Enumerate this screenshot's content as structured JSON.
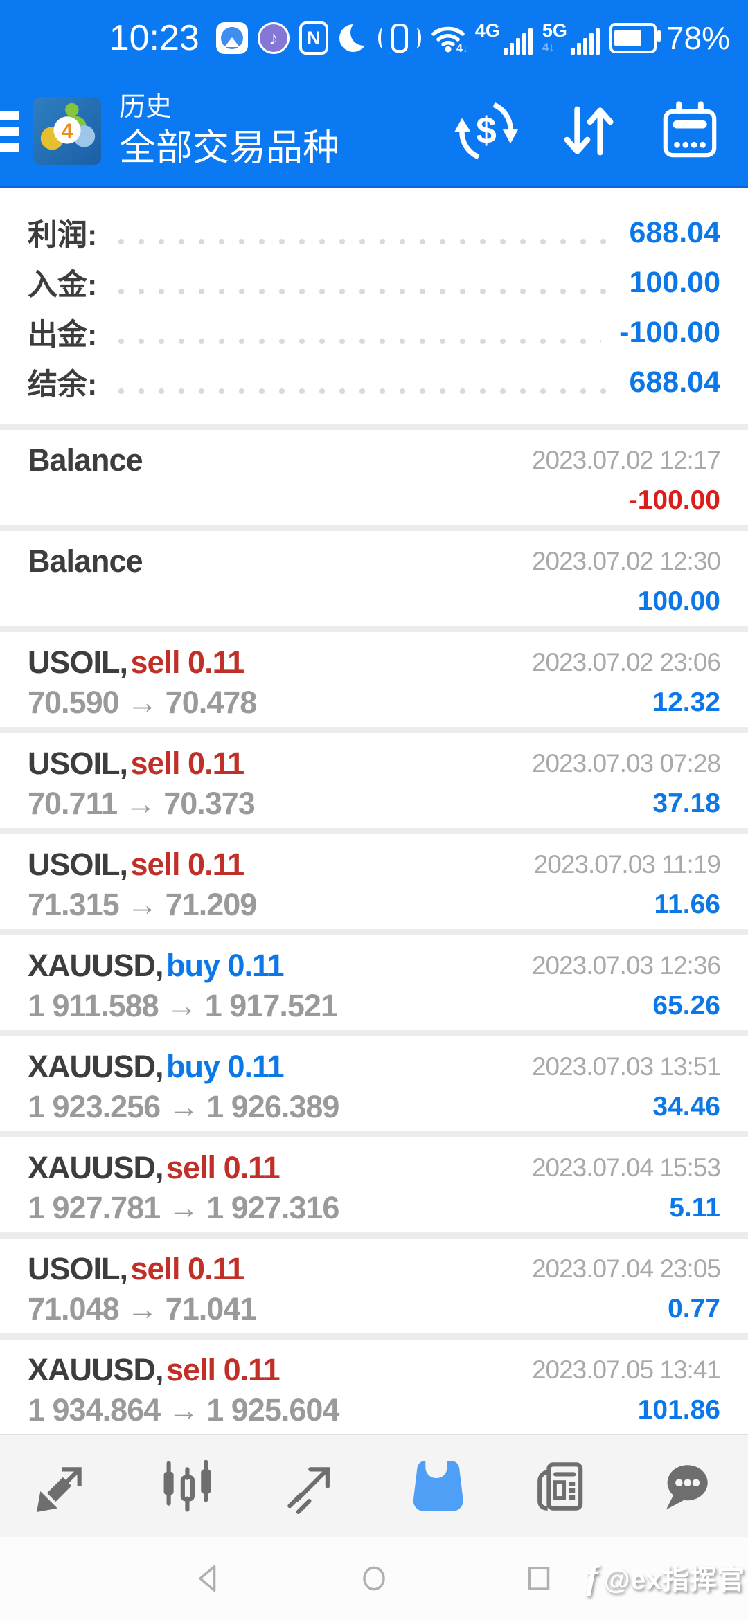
{
  "colors": {
    "header_blue": "#0b7af2",
    "accent_blue": "#0c78e8",
    "sell_red": "#c13028",
    "negative_red": "#d91f1c",
    "toolbar_active_blue": "#4f9ff7"
  },
  "status_bar": {
    "time": "10:23",
    "music_glyph": "♪",
    "nfc_letter": "N",
    "network_primary": "4G",
    "network_secondary": "5G",
    "wifi_sub": "4↓",
    "network_secondary_sub": "4↓",
    "battery_percent": "78%"
  },
  "header": {
    "title_small": "历史",
    "title_large": "全部交易品种",
    "logo_badge": "4"
  },
  "summary": {
    "rows": [
      {
        "label": "利润:",
        "value": "688.04"
      },
      {
        "label": "入金:",
        "value": "100.00"
      },
      {
        "label": "出金:",
        "value": "-100.00"
      },
      {
        "label": "结余:",
        "value": "688.04"
      }
    ]
  },
  "strings": {
    "price_arrow": "→"
  },
  "history": {
    "items": [
      {
        "type": "balance",
        "title": "Balance",
        "datetime": "2023.07.02 12:17",
        "amount": "-100.00",
        "amount_class": "negative"
      },
      {
        "type": "balance",
        "title": "Balance",
        "datetime": "2023.07.02 12:30",
        "amount": "100.00",
        "amount_class": "positive"
      },
      {
        "type": "trade",
        "symbol": "USOIL,",
        "side": "sell",
        "volume": "0.11",
        "open": "70.590",
        "close": "70.478",
        "datetime": "2023.07.02 23:06",
        "profit": "12.32"
      },
      {
        "type": "trade",
        "symbol": "USOIL,",
        "side": "sell",
        "volume": "0.11",
        "open": "70.711",
        "close": "70.373",
        "datetime": "2023.07.03 07:28",
        "profit": "37.18"
      },
      {
        "type": "trade",
        "symbol": "USOIL,",
        "side": "sell",
        "volume": "0.11",
        "open": "71.315",
        "close": "71.209",
        "datetime": "2023.07.03 11:19",
        "profit": "11.66"
      },
      {
        "type": "trade",
        "symbol": "XAUUSD,",
        "side": "buy",
        "volume": "0.11",
        "open": "1 911.588",
        "close": "1 917.521",
        "datetime": "2023.07.03 12:36",
        "profit": "65.26"
      },
      {
        "type": "trade",
        "symbol": "XAUUSD,",
        "side": "buy",
        "volume": "0.11",
        "open": "1 923.256",
        "close": "1 926.389",
        "datetime": "2023.07.03 13:51",
        "profit": "34.46"
      },
      {
        "type": "trade",
        "symbol": "XAUUSD,",
        "side": "sell",
        "volume": "0.11",
        "open": "1 927.781",
        "close": "1 927.316",
        "datetime": "2023.07.04 15:53",
        "profit": "5.11"
      },
      {
        "type": "trade",
        "symbol": "USOIL,",
        "side": "sell",
        "volume": "0.11",
        "open": "71.048",
        "close": "71.041",
        "datetime": "2023.07.04 23:05",
        "profit": "0.77"
      },
      {
        "type": "trade",
        "symbol": "XAUUSD,",
        "side": "sell",
        "volume": "0.11",
        "open": "1 934.864",
        "close": "1 925.604",
        "datetime": "2023.07.05 13:41",
        "profit": "101.86"
      }
    ]
  },
  "toolbar": {
    "items": [
      {
        "name": "quotes"
      },
      {
        "name": "charts"
      },
      {
        "name": "trade"
      },
      {
        "name": "history",
        "active": true
      },
      {
        "name": "news"
      },
      {
        "name": "messages"
      }
    ]
  },
  "navbar": {
    "watermark_logo": "ƒ",
    "watermark_text": "@ex指挥官"
  }
}
